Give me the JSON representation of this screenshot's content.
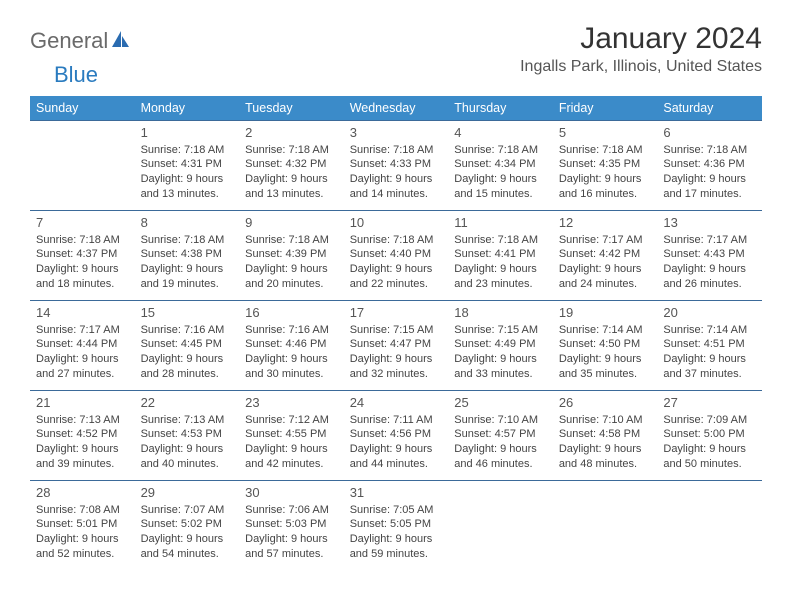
{
  "colors": {
    "header_bg": "#3b8bc9",
    "header_text": "#ffffff",
    "row_border": "#3b6a99",
    "body_text": "#444444",
    "title_text": "#333333",
    "logo_gray": "#6a6a6a",
    "logo_blue": "#2a7bbf",
    "background": "#ffffff"
  },
  "logo": {
    "part1": "General",
    "part2": "Blue"
  },
  "title": "January 2024",
  "location": "Ingalls Park, Illinois, United States",
  "day_headers": [
    "Sunday",
    "Monday",
    "Tuesday",
    "Wednesday",
    "Thursday",
    "Friday",
    "Saturday"
  ],
  "weeks": [
    [
      null,
      {
        "n": "1",
        "sunrise": "Sunrise: 7:18 AM",
        "sunset": "Sunset: 4:31 PM",
        "dl1": "Daylight: 9 hours",
        "dl2": "and 13 minutes."
      },
      {
        "n": "2",
        "sunrise": "Sunrise: 7:18 AM",
        "sunset": "Sunset: 4:32 PM",
        "dl1": "Daylight: 9 hours",
        "dl2": "and 13 minutes."
      },
      {
        "n": "3",
        "sunrise": "Sunrise: 7:18 AM",
        "sunset": "Sunset: 4:33 PM",
        "dl1": "Daylight: 9 hours",
        "dl2": "and 14 minutes."
      },
      {
        "n": "4",
        "sunrise": "Sunrise: 7:18 AM",
        "sunset": "Sunset: 4:34 PM",
        "dl1": "Daylight: 9 hours",
        "dl2": "and 15 minutes."
      },
      {
        "n": "5",
        "sunrise": "Sunrise: 7:18 AM",
        "sunset": "Sunset: 4:35 PM",
        "dl1": "Daylight: 9 hours",
        "dl2": "and 16 minutes."
      },
      {
        "n": "6",
        "sunrise": "Sunrise: 7:18 AM",
        "sunset": "Sunset: 4:36 PM",
        "dl1": "Daylight: 9 hours",
        "dl2": "and 17 minutes."
      }
    ],
    [
      {
        "n": "7",
        "sunrise": "Sunrise: 7:18 AM",
        "sunset": "Sunset: 4:37 PM",
        "dl1": "Daylight: 9 hours",
        "dl2": "and 18 minutes."
      },
      {
        "n": "8",
        "sunrise": "Sunrise: 7:18 AM",
        "sunset": "Sunset: 4:38 PM",
        "dl1": "Daylight: 9 hours",
        "dl2": "and 19 minutes."
      },
      {
        "n": "9",
        "sunrise": "Sunrise: 7:18 AM",
        "sunset": "Sunset: 4:39 PM",
        "dl1": "Daylight: 9 hours",
        "dl2": "and 20 minutes."
      },
      {
        "n": "10",
        "sunrise": "Sunrise: 7:18 AM",
        "sunset": "Sunset: 4:40 PM",
        "dl1": "Daylight: 9 hours",
        "dl2": "and 22 minutes."
      },
      {
        "n": "11",
        "sunrise": "Sunrise: 7:18 AM",
        "sunset": "Sunset: 4:41 PM",
        "dl1": "Daylight: 9 hours",
        "dl2": "and 23 minutes."
      },
      {
        "n": "12",
        "sunrise": "Sunrise: 7:17 AM",
        "sunset": "Sunset: 4:42 PM",
        "dl1": "Daylight: 9 hours",
        "dl2": "and 24 minutes."
      },
      {
        "n": "13",
        "sunrise": "Sunrise: 7:17 AM",
        "sunset": "Sunset: 4:43 PM",
        "dl1": "Daylight: 9 hours",
        "dl2": "and 26 minutes."
      }
    ],
    [
      {
        "n": "14",
        "sunrise": "Sunrise: 7:17 AM",
        "sunset": "Sunset: 4:44 PM",
        "dl1": "Daylight: 9 hours",
        "dl2": "and 27 minutes."
      },
      {
        "n": "15",
        "sunrise": "Sunrise: 7:16 AM",
        "sunset": "Sunset: 4:45 PM",
        "dl1": "Daylight: 9 hours",
        "dl2": "and 28 minutes."
      },
      {
        "n": "16",
        "sunrise": "Sunrise: 7:16 AM",
        "sunset": "Sunset: 4:46 PM",
        "dl1": "Daylight: 9 hours",
        "dl2": "and 30 minutes."
      },
      {
        "n": "17",
        "sunrise": "Sunrise: 7:15 AM",
        "sunset": "Sunset: 4:47 PM",
        "dl1": "Daylight: 9 hours",
        "dl2": "and 32 minutes."
      },
      {
        "n": "18",
        "sunrise": "Sunrise: 7:15 AM",
        "sunset": "Sunset: 4:49 PM",
        "dl1": "Daylight: 9 hours",
        "dl2": "and 33 minutes."
      },
      {
        "n": "19",
        "sunrise": "Sunrise: 7:14 AM",
        "sunset": "Sunset: 4:50 PM",
        "dl1": "Daylight: 9 hours",
        "dl2": "and 35 minutes."
      },
      {
        "n": "20",
        "sunrise": "Sunrise: 7:14 AM",
        "sunset": "Sunset: 4:51 PM",
        "dl1": "Daylight: 9 hours",
        "dl2": "and 37 minutes."
      }
    ],
    [
      {
        "n": "21",
        "sunrise": "Sunrise: 7:13 AM",
        "sunset": "Sunset: 4:52 PM",
        "dl1": "Daylight: 9 hours",
        "dl2": "and 39 minutes."
      },
      {
        "n": "22",
        "sunrise": "Sunrise: 7:13 AM",
        "sunset": "Sunset: 4:53 PM",
        "dl1": "Daylight: 9 hours",
        "dl2": "and 40 minutes."
      },
      {
        "n": "23",
        "sunrise": "Sunrise: 7:12 AM",
        "sunset": "Sunset: 4:55 PM",
        "dl1": "Daylight: 9 hours",
        "dl2": "and 42 minutes."
      },
      {
        "n": "24",
        "sunrise": "Sunrise: 7:11 AM",
        "sunset": "Sunset: 4:56 PM",
        "dl1": "Daylight: 9 hours",
        "dl2": "and 44 minutes."
      },
      {
        "n": "25",
        "sunrise": "Sunrise: 7:10 AM",
        "sunset": "Sunset: 4:57 PM",
        "dl1": "Daylight: 9 hours",
        "dl2": "and 46 minutes."
      },
      {
        "n": "26",
        "sunrise": "Sunrise: 7:10 AM",
        "sunset": "Sunset: 4:58 PM",
        "dl1": "Daylight: 9 hours",
        "dl2": "and 48 minutes."
      },
      {
        "n": "27",
        "sunrise": "Sunrise: 7:09 AM",
        "sunset": "Sunset: 5:00 PM",
        "dl1": "Daylight: 9 hours",
        "dl2": "and 50 minutes."
      }
    ],
    [
      {
        "n": "28",
        "sunrise": "Sunrise: 7:08 AM",
        "sunset": "Sunset: 5:01 PM",
        "dl1": "Daylight: 9 hours",
        "dl2": "and 52 minutes."
      },
      {
        "n": "29",
        "sunrise": "Sunrise: 7:07 AM",
        "sunset": "Sunset: 5:02 PM",
        "dl1": "Daylight: 9 hours",
        "dl2": "and 54 minutes."
      },
      {
        "n": "30",
        "sunrise": "Sunrise: 7:06 AM",
        "sunset": "Sunset: 5:03 PM",
        "dl1": "Daylight: 9 hours",
        "dl2": "and 57 minutes."
      },
      {
        "n": "31",
        "sunrise": "Sunrise: 7:05 AM",
        "sunset": "Sunset: 5:05 PM",
        "dl1": "Daylight: 9 hours",
        "dl2": "and 59 minutes."
      },
      null,
      null,
      null
    ]
  ]
}
